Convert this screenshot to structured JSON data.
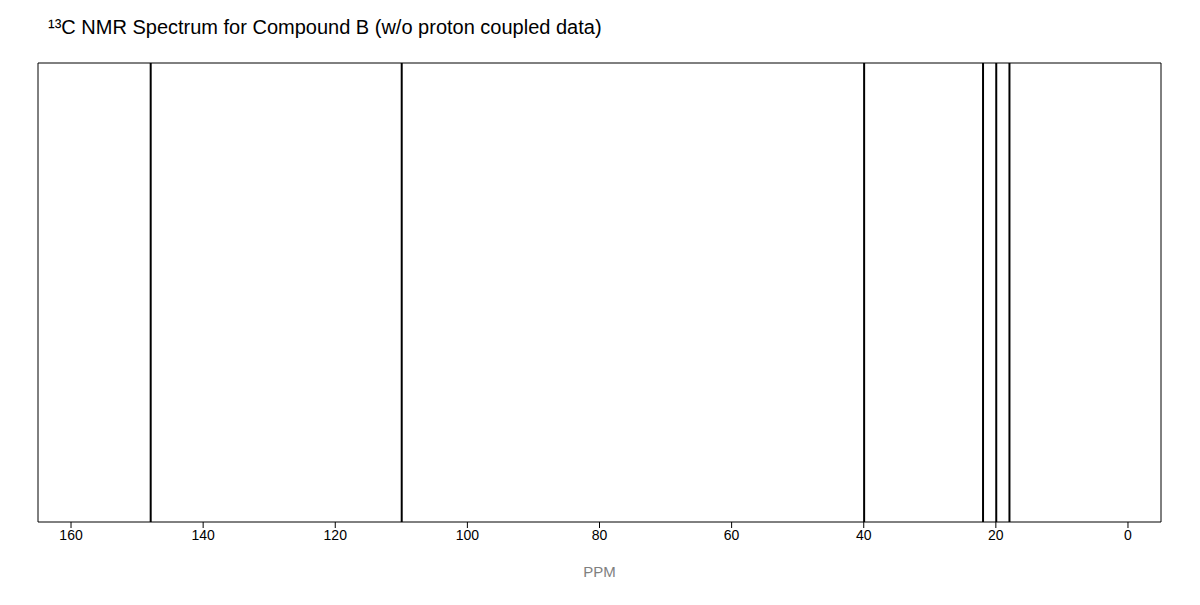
{
  "chart_data": {
    "type": "stem",
    "title": "¹³C NMR Spectrum for Compound B (w/o proton coupled data)",
    "xlabel": "PPM",
    "x": [
      148,
      110,
      40,
      22,
      20,
      18
    ],
    "values": [
      1.05,
      1.05,
      1.05,
      1.05,
      1.05,
      1.05
    ],
    "color": "#000000",
    "xlim": [
      165,
      -5
    ],
    "ylim": [
      0,
      1.05
    ],
    "xticks": [
      160,
      140,
      120,
      100,
      80,
      60,
      40,
      20,
      0
    ],
    "tick_labels": "x"
  }
}
